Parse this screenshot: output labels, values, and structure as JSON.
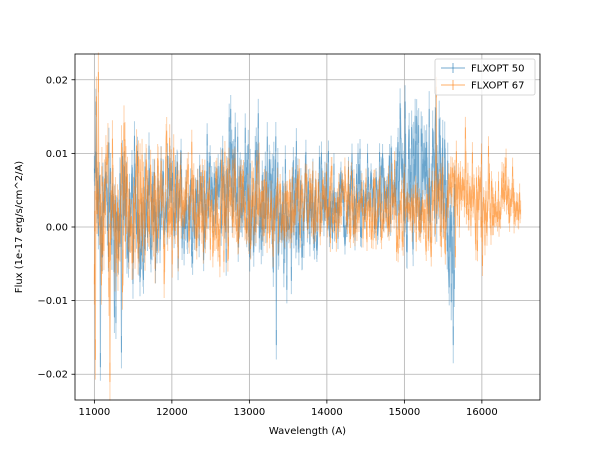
{
  "chart_data": {
    "type": "line",
    "title": "",
    "xlabel": "Wavelength (A)",
    "ylabel": "Flux (1e-17 erg/s/cm^2/A)",
    "xlim": [
      10750,
      16750
    ],
    "ylim": [
      -0.0235,
      0.0235
    ],
    "xticks": [
      11000,
      12000,
      13000,
      14000,
      15000,
      16000
    ],
    "xtick_labels": [
      "11000",
      "12000",
      "13000",
      "14000",
      "15000",
      "16000"
    ],
    "yticks": [
      -0.02,
      -0.01,
      0.0,
      0.01,
      0.02
    ],
    "ytick_labels": [
      "−0.02",
      "−0.01",
      "0.00",
      "0.01",
      "0.02"
    ],
    "grid": true,
    "legend_position": "upper right",
    "series": [
      {
        "name": "FLXOPT 50",
        "color": "#1f77b4",
        "x_start": 11000,
        "x_end": 15650,
        "n_points": 720,
        "envelope": [
          {
            "x": 11000,
            "center": 0.004,
            "amplitude": 0.007
          },
          {
            "x": 11300,
            "center": 0.001,
            "amplitude": 0.009
          },
          {
            "x": 11800,
            "center": 0.002,
            "amplitude": 0.007
          },
          {
            "x": 12500,
            "center": 0.004,
            "amplitude": 0.006
          },
          {
            "x": 12800,
            "center": 0.006,
            "amplitude": 0.008
          },
          {
            "x": 13350,
            "center": 0.002,
            "amplitude": 0.008
          },
          {
            "x": 14000,
            "center": 0.003,
            "amplitude": 0.006
          },
          {
            "x": 14700,
            "center": 0.004,
            "amplitude": 0.005
          },
          {
            "x": 15000,
            "center": 0.005,
            "amplitude": 0.009
          },
          {
            "x": 15400,
            "center": 0.006,
            "amplitude": 0.01
          },
          {
            "x": 15650,
            "center": 0.0,
            "amplitude": 0.01
          }
        ]
      },
      {
        "name": "FLXOPT 67",
        "color": "#ff7f0e",
        "x_start": 11000,
        "x_end": 16500,
        "n_points": 850,
        "envelope": [
          {
            "x": 11000,
            "center": 0.002,
            "amplitude": 0.011
          },
          {
            "x": 11300,
            "center": 0.003,
            "amplitude": 0.01
          },
          {
            "x": 11800,
            "center": 0.003,
            "amplitude": 0.008
          },
          {
            "x": 12500,
            "center": 0.003,
            "amplitude": 0.006
          },
          {
            "x": 13000,
            "center": 0.003,
            "amplitude": 0.006
          },
          {
            "x": 14000,
            "center": 0.003,
            "amplitude": 0.005
          },
          {
            "x": 15000,
            "center": 0.002,
            "amplitude": 0.005
          },
          {
            "x": 15700,
            "center": 0.004,
            "amplitude": 0.006
          },
          {
            "x": 16500,
            "center": 0.003,
            "amplitude": 0.005
          }
        ]
      }
    ],
    "spikes": [
      {
        "series": 0,
        "x": 11080,
        "y": -0.019
      },
      {
        "series": 0,
        "x": 11350,
        "y": -0.017
      },
      {
        "series": 0,
        "x": 11280,
        "y": -0.013
      },
      {
        "series": 0,
        "x": 13350,
        "y": -0.016
      },
      {
        "series": 0,
        "x": 15630,
        "y": -0.016
      },
      {
        "series": 0,
        "x": 15010,
        "y": 0.017
      },
      {
        "series": 0,
        "x": 15320,
        "y": 0.016
      },
      {
        "series": 0,
        "x": 11020,
        "y": 0.017
      },
      {
        "series": 0,
        "x": 12760,
        "y": 0.016
      },
      {
        "series": 1,
        "x": 11200,
        "y": -0.021
      },
      {
        "series": 1,
        "x": 11050,
        "y": 0.021
      },
      {
        "series": 1,
        "x": 11010,
        "y": -0.018
      },
      {
        "series": 1,
        "x": 15410,
        "y": 0.019
      }
    ]
  }
}
